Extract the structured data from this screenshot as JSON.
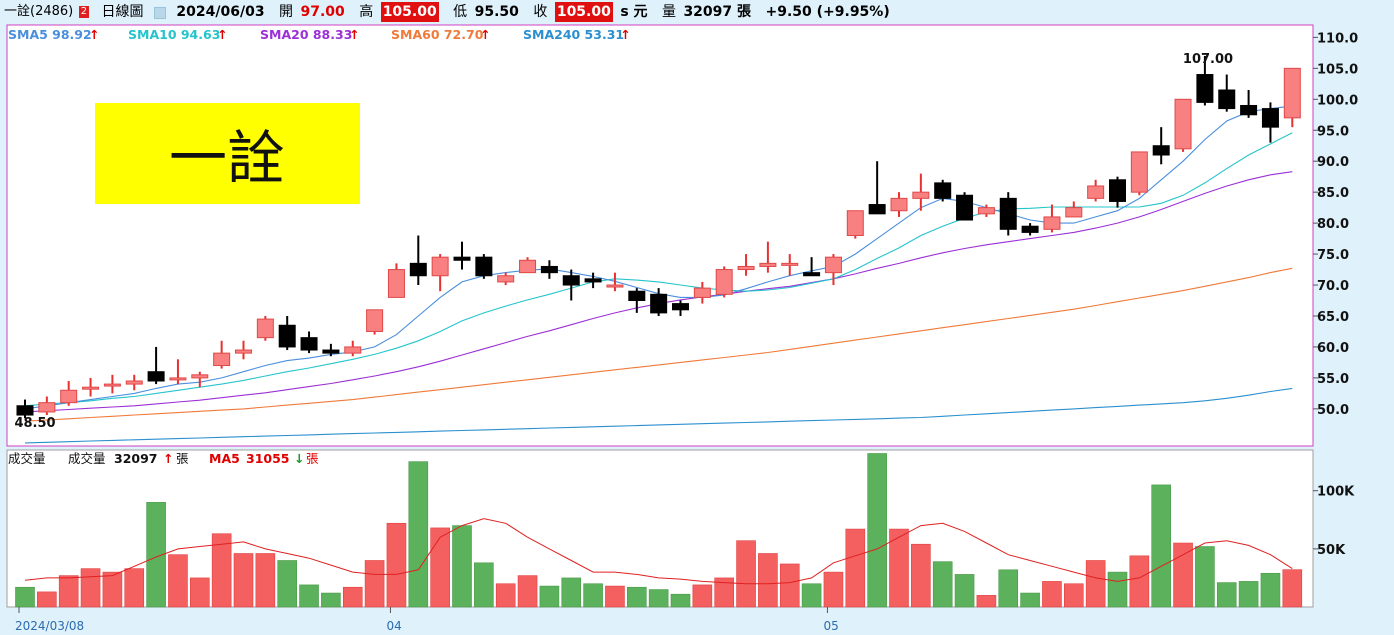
{
  "header": {
    "stock_name": "一詮(2486)",
    "badge": "2",
    "period_label": "日線圖",
    "date": "2024/06/03",
    "open_label": "開",
    "open_value": "97.00",
    "high_label": "高",
    "high_value": "105.00",
    "low_label": "低",
    "low_value": "95.50",
    "close_label": "收",
    "close_value": "105.00",
    "close_suffix": "s 元",
    "volume_label": "量",
    "volume_value": "32097 張",
    "change_text": "+9.50 (+9.95%)"
  },
  "colors": {
    "up": "#f06a6a",
    "up_fill": "#f88080",
    "down": "#000000",
    "sma5": "#4a8fdd",
    "sma10": "#25c4cc",
    "sma20": "#9b30d6",
    "sma60": "#f07a3a",
    "sma240": "#2b8fd0",
    "vol_up": "#f46060",
    "vol_down": "#5cb25c",
    "vol_ma": "#e02020",
    "panel_border": "#d040c0",
    "background": "#dff1fb"
  },
  "sma_legend": [
    {
      "label": "SMA5",
      "value": "98.92",
      "arrow": "↑"
    },
    {
      "label": "SMA10",
      "value": "94.63",
      "arrow": "↑"
    },
    {
      "label": "SMA20",
      "value": "88.33",
      "arrow": "↑"
    },
    {
      "label": "SMA60",
      "value": "72.70",
      "arrow": "↑"
    },
    {
      "label": "SMA240",
      "value": "53.31",
      "arrow": "↑"
    }
  ],
  "volume_legend": {
    "title": "成交量",
    "vol_label": "成交量",
    "vol_value": "32097",
    "vol_arrow": "↑",
    "vol_unit": "張",
    "ma_label": "MA5",
    "ma_value": "31055",
    "ma_arrow": "↓",
    "ma_unit": "張"
  },
  "watermark_text": "一詮",
  "chart_data": {
    "type": "candlestick",
    "price_ylim": [
      44,
      112
    ],
    "price_ticks": [
      "110.0",
      "105.0",
      "100.0",
      "95.0",
      "90.0",
      "85.0",
      "80.0",
      "75.0",
      "70.0",
      "65.0",
      "60.0",
      "55.0",
      "50.0"
    ],
    "price_annotations": [
      {
        "text": "107.00"
      },
      {
        "text": "48.50"
      }
    ],
    "volume_ylim": [
      0,
      135000
    ],
    "volume_ticks": [
      {
        "value": 100000,
        "label": "100K"
      },
      {
        "value": 50000,
        "label": "50K"
      }
    ],
    "x_labels": [
      {
        "index": 0,
        "label": "2024/03/08"
      },
      {
        "index": 17,
        "label": "04"
      },
      {
        "index": 37,
        "label": "05"
      }
    ],
    "candles": [
      [
        50.5,
        51.5,
        48.5,
        49.0,
        17000
      ],
      [
        49.5,
        52.0,
        49.0,
        51.0,
        13000
      ],
      [
        51.0,
        54.5,
        50.5,
        53.0,
        27000
      ],
      [
        53.5,
        55.0,
        52.0,
        53.5,
        33000
      ],
      [
        54.0,
        55.5,
        52.5,
        54.0,
        30000
      ],
      [
        54.0,
        55.5,
        53.0,
        54.5,
        33000
      ],
      [
        56.0,
        60.0,
        54.0,
        54.5,
        90000
      ],
      [
        55.0,
        58.0,
        54.0,
        55.0,
        45000
      ],
      [
        55.0,
        56.0,
        53.5,
        55.5,
        25000
      ],
      [
        57.0,
        61.0,
        56.5,
        59.0,
        63000
      ],
      [
        59.0,
        61.0,
        58.0,
        59.5,
        46000
      ],
      [
        61.5,
        65.0,
        61.0,
        64.5,
        46000
      ],
      [
        63.5,
        65.0,
        59.5,
        60.0,
        40000
      ],
      [
        61.5,
        62.5,
        59.0,
        59.5,
        19000
      ],
      [
        59.5,
        60.5,
        58.5,
        59.0,
        12000
      ],
      [
        59.0,
        61.0,
        58.5,
        60.0,
        17000
      ],
      [
        62.5,
        66.0,
        62.0,
        66.0,
        40000
      ],
      [
        68.0,
        73.5,
        68.0,
        72.5,
        72000
      ],
      [
        73.5,
        78.0,
        70.0,
        71.5,
        125000
      ],
      [
        71.5,
        75.0,
        69.0,
        74.5,
        68000
      ],
      [
        74.5,
        77.0,
        72.5,
        74.0,
        70000
      ],
      [
        74.5,
        75.0,
        71.0,
        71.5,
        38000
      ],
      [
        70.5,
        72.0,
        70.0,
        71.5,
        20000
      ],
      [
        72.0,
        74.5,
        72.0,
        74.0,
        27000
      ],
      [
        73.0,
        74.0,
        71.0,
        72.0,
        18000
      ],
      [
        71.5,
        72.5,
        67.5,
        70.0,
        25000
      ],
      [
        71.0,
        72.0,
        69.5,
        70.5,
        20000
      ],
      [
        70.0,
        72.0,
        69.0,
        70.0,
        18000
      ],
      [
        69.0,
        69.5,
        65.5,
        67.5,
        17000
      ],
      [
        68.5,
        69.5,
        65.0,
        65.5,
        15000
      ],
      [
        67.0,
        67.5,
        65.0,
        66.0,
        11000
      ],
      [
        68.0,
        70.5,
        67.0,
        69.5,
        19000
      ],
      [
        68.5,
        73.0,
        68.0,
        72.5,
        25000
      ],
      [
        72.5,
        75.0,
        71.5,
        73.0,
        57000
      ],
      [
        73.0,
        77.0,
        72.0,
        73.5,
        46000
      ],
      [
        73.5,
        75.0,
        71.5,
        73.5,
        37000
      ],
      [
        72.0,
        74.5,
        71.5,
        71.5,
        20000
      ],
      [
        72.0,
        75.0,
        70.0,
        74.5,
        30000
      ],
      [
        78.0,
        82.0,
        77.5,
        82.0,
        67000
      ],
      [
        83.0,
        90.0,
        82.0,
        81.5,
        132000
      ],
      [
        82.0,
        85.0,
        81.0,
        84.0,
        67000
      ],
      [
        84.0,
        88.0,
        82.0,
        85.0,
        54000
      ],
      [
        86.5,
        87.0,
        83.5,
        84.0,
        39000
      ],
      [
        84.5,
        85.0,
        80.5,
        80.5,
        28000
      ],
      [
        81.5,
        83.0,
        81.0,
        82.5,
        10000
      ],
      [
        84.0,
        85.0,
        78.0,
        79.0,
        32000
      ],
      [
        79.5,
        80.0,
        78.0,
        78.5,
        12000
      ],
      [
        79.0,
        83.0,
        78.5,
        81.0,
        22000
      ],
      [
        81.0,
        83.5,
        81.0,
        82.5,
        20000
      ],
      [
        84.0,
        87.0,
        83.5,
        86.0,
        40000
      ],
      [
        87.0,
        87.5,
        82.5,
        83.5,
        30000
      ],
      [
        85.0,
        91.5,
        84.5,
        91.5,
        44000
      ],
      [
        92.5,
        95.5,
        89.5,
        91.0,
        105000
      ],
      [
        92.0,
        100.0,
        91.5,
        100.0,
        55000
      ],
      [
        104.0,
        107.0,
        99.0,
        99.5,
        52000
      ],
      [
        101.5,
        104.0,
        98.0,
        98.5,
        21000
      ],
      [
        99.0,
        101.5,
        97.0,
        97.5,
        22000
      ],
      [
        98.5,
        99.5,
        93.0,
        95.5,
        29000
      ],
      [
        97.0,
        105.0,
        95.5,
        105.0,
        32097
      ]
    ],
    "sma5": [
      50.0,
      50.5,
      51.0,
      51.5,
      52.0,
      52.5,
      53.3,
      54.0,
      54.3,
      55.0,
      56.0,
      57.0,
      57.8,
      58.2,
      58.8,
      59.2,
      60.0,
      62.0,
      65.0,
      68.0,
      70.5,
      71.5,
      72.0,
      72.4,
      72.6,
      72.0,
      71.4,
      70.6,
      69.6,
      68.6,
      68.0,
      68.0,
      68.4,
      69.4,
      70.5,
      71.5,
      72.3,
      73.0,
      75.0,
      77.5,
      80.0,
      82.5,
      84.0,
      83.5,
      82.5,
      81.5,
      80.5,
      80.0,
      80.0,
      81.0,
      82.0,
      84.0,
      87.0,
      90.0,
      93.5,
      96.5,
      98.0,
      98.5,
      98.9
    ],
    "sma10": [
      50.5,
      50.8,
      51.0,
      51.3,
      51.7,
      52.0,
      52.5,
      53.0,
      53.5,
      54.0,
      54.6,
      55.3,
      56.0,
      56.6,
      57.3,
      58.0,
      58.8,
      59.8,
      61.0,
      62.5,
      64.2,
      65.5,
      66.6,
      67.6,
      68.5,
      69.5,
      70.5,
      71.0,
      70.8,
      70.5,
      70.0,
      69.5,
      69.2,
      69.0,
      69.2,
      69.6,
      70.3,
      71.0,
      72.5,
      74.3,
      76.0,
      78.0,
      79.5,
      80.8,
      81.8,
      82.3,
      82.4,
      82.6,
      82.6,
      82.6,
      82.6,
      82.6,
      83.2,
      84.5,
      86.5,
      88.8,
      91.0,
      92.8,
      94.6
    ],
    "sma20": [
      49.5,
      49.7,
      49.9,
      50.1,
      50.3,
      50.5,
      50.8,
      51.1,
      51.4,
      51.8,
      52.2,
      52.6,
      53.1,
      53.6,
      54.1,
      54.7,
      55.3,
      56.0,
      56.8,
      57.7,
      58.7,
      59.7,
      60.7,
      61.7,
      62.6,
      63.6,
      64.6,
      65.5,
      66.3,
      67.0,
      67.6,
      68.1,
      68.5,
      69.0,
      69.4,
      69.8,
      70.4,
      71.0,
      71.8,
      72.7,
      73.5,
      74.4,
      75.2,
      75.9,
      76.5,
      77.0,
      77.5,
      78.0,
      78.5,
      79.2,
      80.0,
      81.0,
      82.2,
      83.5,
      84.8,
      86.0,
      87.0,
      87.8,
      88.3
    ],
    "sma60": [
      48.0,
      48.2,
      48.4,
      48.6,
      48.8,
      49.0,
      49.2,
      49.4,
      49.6,
      49.8,
      50.0,
      50.3,
      50.6,
      50.9,
      51.2,
      51.5,
      51.9,
      52.3,
      52.7,
      53.1,
      53.5,
      53.9,
      54.3,
      54.7,
      55.1,
      55.5,
      55.9,
      56.3,
      56.7,
      57.1,
      57.5,
      57.9,
      58.3,
      58.7,
      59.1,
      59.6,
      60.1,
      60.6,
      61.1,
      61.6,
      62.1,
      62.6,
      63.1,
      63.6,
      64.1,
      64.6,
      65.1,
      65.6,
      66.1,
      66.7,
      67.3,
      67.9,
      68.5,
      69.1,
      69.8,
      70.5,
      71.2,
      72.0,
      72.7
    ],
    "sma240": [
      44.5,
      44.6,
      44.7,
      44.8,
      44.9,
      45.0,
      45.1,
      45.2,
      45.3,
      45.4,
      45.5,
      45.6,
      45.7,
      45.8,
      45.9,
      46.0,
      46.1,
      46.2,
      46.3,
      46.4,
      46.5,
      46.6,
      46.7,
      46.8,
      46.9,
      47.0,
      47.1,
      47.2,
      47.3,
      47.4,
      47.5,
      47.6,
      47.7,
      47.8,
      47.9,
      48.0,
      48.1,
      48.2,
      48.3,
      48.4,
      48.5,
      48.6,
      48.8,
      49.0,
      49.2,
      49.4,
      49.6,
      49.8,
      50.0,
      50.2,
      50.4,
      50.6,
      50.8,
      51.0,
      51.3,
      51.7,
      52.2,
      52.8,
      53.3
    ],
    "vol_ma5": [
      23000,
      25000,
      25000,
      26000,
      27000,
      35000,
      43000,
      50000,
      52000,
      54000,
      56000,
      50000,
      46000,
      42000,
      36000,
      30000,
      28000,
      28000,
      32000,
      60000,
      70000,
      76000,
      72000,
      60000,
      50000,
      40000,
      30000,
      30000,
      28000,
      25000,
      24000,
      22000,
      21000,
      20000,
      20000,
      21000,
      25000,
      38000,
      44000,
      50000,
      60000,
      70000,
      72000,
      65000,
      55000,
      45000,
      40000,
      35000,
      30000,
      25000,
      22000,
      25000,
      35000,
      45000,
      55000,
      57000,
      53000,
      45000,
      33000
    ]
  }
}
